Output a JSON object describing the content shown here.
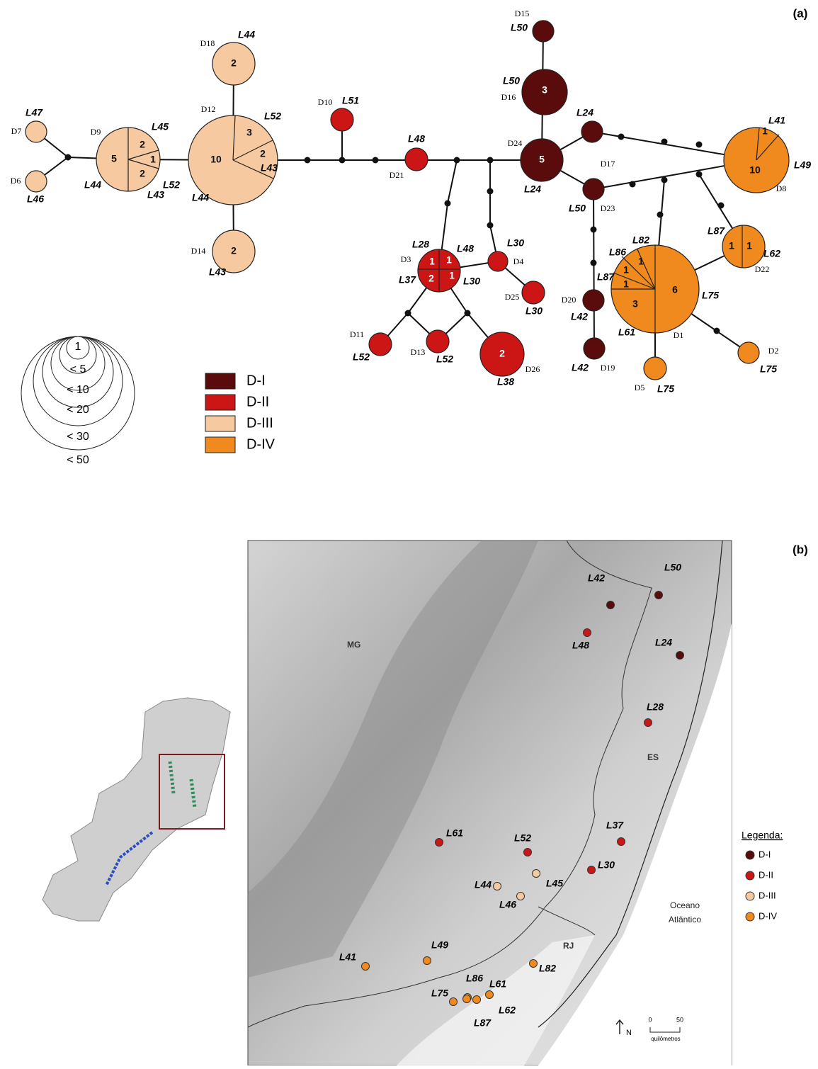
{
  "panel_a": {
    "label": "(a)",
    "groups": [
      {
        "name": "D-I",
        "color": "#5a0b0b"
      },
      {
        "name": "D-II",
        "color": "#cc1616"
      },
      {
        "name": "D-III",
        "color": "#f7c9a0"
      },
      {
        "name": "D-IV",
        "color": "#f08a1e"
      }
    ],
    "size_legend": [
      "1",
      "< 5",
      "< 10",
      "< 20",
      "< 30",
      "< 50"
    ],
    "nodes": [
      {
        "id": "D15",
        "group": "D-I",
        "sectors": [],
        "localities": [
          "L50"
        ]
      },
      {
        "id": "D16",
        "group": "D-I",
        "sectors": [
          "3"
        ],
        "localities": [
          "L50"
        ]
      },
      {
        "id": "D24",
        "group": "D-I",
        "sectors": [
          "5"
        ],
        "localities": [
          "L24"
        ]
      },
      {
        "id": "D17",
        "group": "D-I",
        "sectors": [],
        "localities": [
          "L24"
        ]
      },
      {
        "id": "D23",
        "group": "D-I",
        "sectors": [],
        "localities": [
          "L50"
        ]
      },
      {
        "id": "D20",
        "group": "D-I",
        "sectors": [],
        "localities": [
          "L42"
        ]
      },
      {
        "id": "D19",
        "group": "D-I",
        "sectors": [],
        "localities": [
          "L42"
        ]
      },
      {
        "id": "D10",
        "group": "D-II",
        "sectors": [],
        "localities": [
          "L51"
        ]
      },
      {
        "id": "D21",
        "group": "D-II",
        "sectors": [],
        "localities": [
          "L48"
        ]
      },
      {
        "id": "D3",
        "group": "D-II",
        "sectors": [
          "1",
          "1",
          "2",
          "1"
        ],
        "localities": [
          "L28",
          "L48",
          "L37",
          "L30"
        ]
      },
      {
        "id": "D4",
        "group": "D-II",
        "sectors": [],
        "localities": [
          "L30"
        ]
      },
      {
        "id": "D25",
        "group": "D-II",
        "sectors": [],
        "localities": [
          "L30"
        ]
      },
      {
        "id": "D11",
        "group": "D-II",
        "sectors": [],
        "localities": [
          "L52"
        ]
      },
      {
        "id": "D13",
        "group": "D-II",
        "sectors": [],
        "localities": [
          "L52"
        ]
      },
      {
        "id": "D26",
        "group": "D-II",
        "sectors": [
          "2"
        ],
        "localities": [
          "L38"
        ]
      },
      {
        "id": "D7",
        "group": "D-III",
        "sectors": [],
        "localities": [
          "L47"
        ]
      },
      {
        "id": "D6",
        "group": "D-III",
        "sectors": [],
        "localities": [
          "L46"
        ]
      },
      {
        "id": "D9",
        "group": "D-III",
        "sectors": [
          "5",
          "2",
          "1",
          "2"
        ],
        "localities": [
          "L45",
          "L52",
          "L44",
          "L43"
        ]
      },
      {
        "id": "D12",
        "group": "D-III",
        "sectors": [
          "10",
          "3",
          "2"
        ],
        "localities": [
          "L52",
          "L43",
          "L44"
        ]
      },
      {
        "id": "D18",
        "group": "D-III",
        "sectors": [
          "2"
        ],
        "localities": [
          "L44"
        ]
      },
      {
        "id": "D14",
        "group": "D-III",
        "sectors": [
          "2"
        ],
        "localities": [
          "L43"
        ]
      },
      {
        "id": "D8",
        "group": "D-IV",
        "sectors": [
          "10",
          "1"
        ],
        "localities": [
          "L41",
          "L49"
        ]
      },
      {
        "id": "D1",
        "group": "D-IV",
        "sectors": [
          "6",
          "3",
          "1",
          "1",
          "1"
        ],
        "localities": [
          "L82",
          "L86",
          "L87",
          "L75",
          "L61"
        ]
      },
      {
        "id": "D22",
        "group": "D-IV",
        "sectors": [
          "1",
          "1"
        ],
        "localities": [
          "L87",
          "L62"
        ]
      },
      {
        "id": "D5",
        "group": "D-IV",
        "sectors": [],
        "localities": [
          "L75"
        ]
      },
      {
        "id": "D2",
        "group": "D-IV",
        "sectors": [],
        "localities": [
          "L75"
        ]
      }
    ]
  },
  "panel_b": {
    "label": "(b)",
    "regions": [
      "MG",
      "ES",
      "RJ"
    ],
    "ocean": [
      "Oceano",
      "Atlântico"
    ],
    "legend_title": "Legenda:",
    "legend": [
      "D-I",
      "D-II",
      "D-III",
      "D-IV"
    ],
    "north": "N",
    "scale": [
      "0",
      "50"
    ],
    "scale_unit": "quilômetros",
    "points": [
      {
        "label": "L50",
        "group": "D-I"
      },
      {
        "label": "L42",
        "group": "D-I"
      },
      {
        "label": "L24",
        "group": "D-I"
      },
      {
        "label": "L48",
        "group": "D-II"
      },
      {
        "label": "L28",
        "group": "D-II"
      },
      {
        "label": "L37",
        "group": "D-II"
      },
      {
        "label": "L30",
        "group": "D-II"
      },
      {
        "label": "L61",
        "group": "D-II"
      },
      {
        "label": "L52",
        "group": "D-II"
      },
      {
        "label": "L45",
        "group": "D-III"
      },
      {
        "label": "L44",
        "group": "D-III"
      },
      {
        "label": "L46",
        "group": "D-III"
      },
      {
        "label": "L82",
        "group": "D-IV"
      },
      {
        "label": "L49",
        "group": "D-IV"
      },
      {
        "label": "L41",
        "group": "D-IV"
      },
      {
        "label": "L86",
        "group": "D-IV"
      },
      {
        "label": "L61",
        "group": "D-IV"
      },
      {
        "label": "L75",
        "group": "D-IV"
      },
      {
        "label": "L62",
        "group": "D-IV"
      },
      {
        "label": "L87",
        "group": "D-IV"
      }
    ]
  }
}
